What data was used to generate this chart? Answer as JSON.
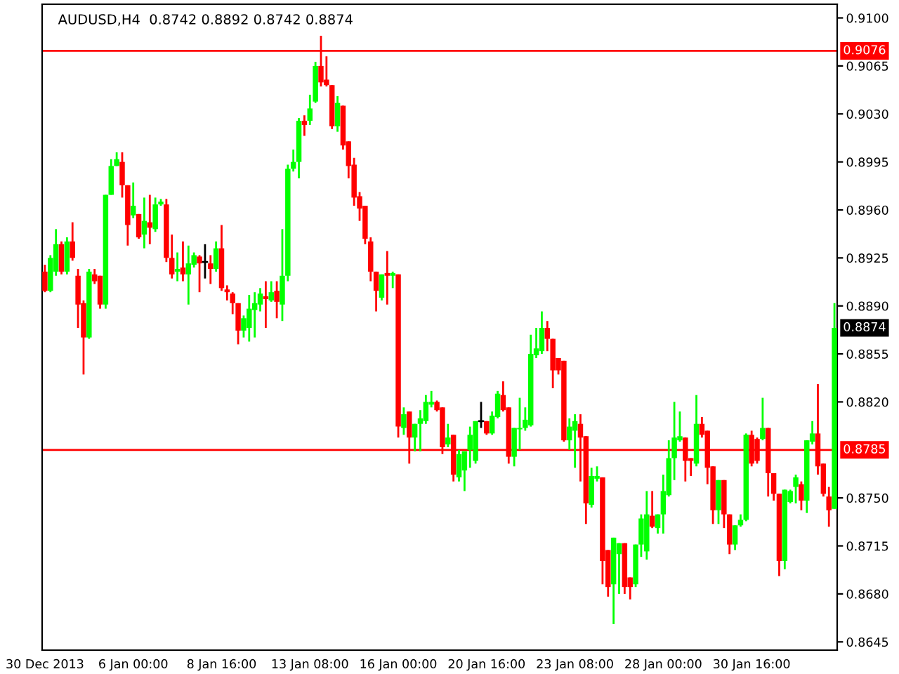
{
  "chart_data": {
    "type": "candlestick",
    "title": "AUDUSD,H4  0.8742 0.8892 0.8742 0.8874",
    "categories": [
      "30 Dec 2013",
      null,
      null,
      null,
      null,
      null,
      null,
      null,
      null,
      null,
      null,
      null,
      null,
      null,
      null,
      null,
      "6 Jan 00:00",
      null,
      null,
      null,
      null,
      null,
      null,
      null,
      null,
      null,
      null,
      null,
      null,
      null,
      null,
      null,
      "8 Jan 16:00",
      null,
      null,
      null,
      null,
      null,
      null,
      null,
      null,
      null,
      null,
      null,
      null,
      null,
      null,
      null,
      "13 Jan 08:00",
      null,
      null,
      null,
      null,
      null,
      null,
      null,
      null,
      null,
      null,
      null,
      null,
      null,
      null,
      null,
      "16 Jan 00:00",
      null,
      null,
      null,
      null,
      null,
      null,
      null,
      null,
      null,
      null,
      null,
      null,
      null,
      null,
      null,
      "20 Jan 16:00",
      null,
      null,
      null,
      null,
      null,
      null,
      null,
      null,
      null,
      null,
      null,
      null,
      null,
      null,
      null,
      "23 Jan 08:00",
      null,
      null,
      null,
      null,
      null,
      null,
      null,
      null,
      null,
      null,
      null,
      null,
      null,
      null,
      null,
      "28 Jan 00:00",
      null,
      null,
      null,
      null,
      null,
      null,
      null,
      null,
      null,
      null,
      null,
      null,
      null,
      null,
      null,
      "30 Jan 16:00",
      null,
      null,
      null,
      null,
      null,
      null,
      null,
      null,
      null,
      null,
      null,
      null,
      null,
      null,
      null
    ],
    "ohlc": [
      [
        0.8915,
        0.892,
        0.89,
        0.8901
      ],
      [
        0.8901,
        0.8927,
        0.89,
        0.8925
      ],
      [
        0.8915,
        0.8946,
        0.8912,
        0.8935
      ],
      [
        0.8935,
        0.8937,
        0.8913,
        0.8915
      ],
      [
        0.8915,
        0.894,
        0.8913,
        0.8937
      ],
      [
        0.8937,
        0.8951,
        0.8923,
        0.8925
      ],
      [
        0.8912,
        0.8917,
        0.8874,
        0.8891
      ],
      [
        0.8892,
        0.8894,
        0.884,
        0.8867
      ],
      [
        0.8867,
        0.8917,
        0.8866,
        0.8915
      ],
      [
        0.8913,
        0.8917,
        0.8906,
        0.8908
      ],
      [
        0.8912,
        0.8912,
        0.8888,
        0.8891
      ],
      [
        0.8891,
        0.8971,
        0.8888,
        0.8971
      ],
      [
        0.8971,
        0.8997,
        0.8971,
        0.8992
      ],
      [
        0.8992,
        0.9002,
        0.8992,
        0.8997
      ],
      [
        0.8995,
        0.9002,
        0.8969,
        0.8978
      ],
      [
        0.8978,
        0.8978,
        0.8934,
        0.8949
      ],
      [
        0.8956,
        0.898,
        0.8954,
        0.8963
      ],
      [
        0.8957,
        0.8957,
        0.8939,
        0.894
      ],
      [
        0.8942,
        0.8969,
        0.8932,
        0.8952
      ],
      [
        0.8951,
        0.8971,
        0.8935,
        0.8947
      ],
      [
        0.8946,
        0.8969,
        0.8944,
        0.8964
      ],
      [
        0.8964,
        0.8968,
        0.8963,
        0.8966
      ],
      [
        0.8964,
        0.8968,
        0.8922,
        0.8925
      ],
      [
        0.8925,
        0.8942,
        0.891,
        0.8913
      ],
      [
        0.8915,
        0.8929,
        0.8908,
        0.8917
      ],
      [
        0.8918,
        0.8937,
        0.8908,
        0.8913
      ],
      [
        0.8913,
        0.8934,
        0.8891,
        0.8921
      ],
      [
        0.892,
        0.8929,
        0.8918,
        0.8927
      ],
      [
        0.8926,
        0.8927,
        0.89,
        0.8921
      ],
      [
        0.8922,
        0.8935,
        0.891,
        0.8922
      ],
      [
        0.8921,
        0.8927,
        0.8906,
        0.8917
      ],
      [
        0.8917,
        0.8937,
        0.8915,
        0.8932
      ],
      [
        0.8932,
        0.8949,
        0.8901,
        0.8903
      ],
      [
        0.8902,
        0.8905,
        0.8894,
        0.89
      ],
      [
        0.8899,
        0.89,
        0.8884,
        0.8892
      ],
      [
        0.8892,
        0.8892,
        0.8862,
        0.8872
      ],
      [
        0.8872,
        0.8883,
        0.8867,
        0.8881
      ],
      [
        0.8874,
        0.8898,
        0.8864,
        0.8888
      ],
      [
        0.8887,
        0.89,
        0.8867,
        0.8892
      ],
      [
        0.8891,
        0.8903,
        0.8886,
        0.8899
      ],
      [
        0.8897,
        0.8908,
        0.8874,
        0.8895
      ],
      [
        0.8894,
        0.8908,
        0.8893,
        0.89
      ],
      [
        0.8901,
        0.8908,
        0.8881,
        0.8893
      ],
      [
        0.8891,
        0.8946,
        0.8879,
        0.8912
      ],
      [
        0.8912,
        0.8993,
        0.8908,
        0.899
      ],
      [
        0.899,
        0.9004,
        0.8988,
        0.8995
      ],
      [
        0.8995,
        0.9027,
        0.8983,
        0.9025
      ],
      [
        0.9025,
        0.9029,
        0.9014,
        0.9022
      ],
      [
        0.9025,
        0.9044,
        0.9022,
        0.9034
      ],
      [
        0.9039,
        0.9068,
        0.9038,
        0.9065
      ],
      [
        0.9065,
        0.9087,
        0.905,
        0.9053
      ],
      [
        0.9055,
        0.9072,
        0.905,
        0.9051
      ],
      [
        0.9051,
        0.9051,
        0.9019,
        0.9021
      ],
      [
        0.9021,
        0.9043,
        0.9017,
        0.9038
      ],
      [
        0.9036,
        0.9036,
        0.9004,
        0.9007
      ],
      [
        0.901,
        0.901,
        0.8983,
        0.8992
      ],
      [
        0.8993,
        0.8998,
        0.8963,
        0.8969
      ],
      [
        0.897,
        0.8973,
        0.8952,
        0.8961
      ],
      [
        0.8963,
        0.8963,
        0.8935,
        0.8939
      ],
      [
        0.8937,
        0.894,
        0.8908,
        0.8915
      ],
      [
        0.8915,
        0.8915,
        0.8886,
        0.8901
      ],
      [
        0.8896,
        0.8913,
        0.8894,
        0.8913
      ],
      [
        0.8914,
        0.893,
        0.8891,
        0.8912
      ],
      [
        0.8912,
        0.8915,
        0.8903,
        0.8914
      ],
      [
        0.8913,
        0.8913,
        0.8794,
        0.8802
      ],
      [
        0.8801,
        0.8816,
        0.8796,
        0.8811
      ],
      [
        0.8813,
        0.8813,
        0.8775,
        0.8794
      ],
      [
        0.8794,
        0.8804,
        0.8784,
        0.8804
      ],
      [
        0.8804,
        0.8814,
        0.8784,
        0.8808
      ],
      [
        0.8806,
        0.8825,
        0.8804,
        0.882
      ],
      [
        0.8818,
        0.8828,
        0.8816,
        0.882
      ],
      [
        0.882,
        0.8821,
        0.8813,
        0.8814
      ],
      [
        0.8816,
        0.8816,
        0.8782,
        0.8787
      ],
      [
        0.8789,
        0.8804,
        0.8787,
        0.8794
      ],
      [
        0.8796,
        0.8796,
        0.8762,
        0.8767
      ],
      [
        0.8765,
        0.8785,
        0.8762,
        0.8782
      ],
      [
        0.877,
        0.8784,
        0.8755,
        0.8784
      ],
      [
        0.8785,
        0.8802,
        0.8772,
        0.8796
      ],
      [
        0.8777,
        0.8806,
        0.8775,
        0.8806
      ],
      [
        0.8806,
        0.882,
        0.8801,
        0.8806
      ],
      [
        0.8806,
        0.8806,
        0.8796,
        0.8797
      ],
      [
        0.8797,
        0.8813,
        0.8796,
        0.881
      ],
      [
        0.8809,
        0.8828,
        0.8808,
        0.8826
      ],
      [
        0.8825,
        0.8835,
        0.8813,
        0.8814
      ],
      [
        0.8816,
        0.8816,
        0.8775,
        0.878
      ],
      [
        0.878,
        0.8801,
        0.8773,
        0.8801
      ],
      [
        0.88,
        0.8823,
        0.8785,
        0.8801
      ],
      [
        0.8801,
        0.8816,
        0.8799,
        0.8807
      ],
      [
        0.8803,
        0.8869,
        0.8802,
        0.8855
      ],
      [
        0.8854,
        0.8874,
        0.8852,
        0.8859
      ],
      [
        0.8857,
        0.8886,
        0.8855,
        0.8874
      ],
      [
        0.8874,
        0.8879,
        0.8857,
        0.8866
      ],
      [
        0.8866,
        0.8866,
        0.883,
        0.8843
      ],
      [
        0.8852,
        0.8852,
        0.884,
        0.8843
      ],
      [
        0.885,
        0.885,
        0.8791,
        0.8792
      ],
      [
        0.8792,
        0.8808,
        0.8785,
        0.8802
      ],
      [
        0.8799,
        0.8811,
        0.8772,
        0.8806
      ],
      [
        0.8804,
        0.8811,
        0.8762,
        0.8794
      ],
      [
        0.8795,
        0.8795,
        0.8731,
        0.8746
      ],
      [
        0.8745,
        0.8772,
        0.8743,
        0.8766
      ],
      [
        0.8764,
        0.8773,
        0.8762,
        0.8766
      ],
      [
        0.8765,
        0.8765,
        0.8687,
        0.8704
      ],
      [
        0.8712,
        0.8712,
        0.8678,
        0.8685
      ],
      [
        0.8687,
        0.8721,
        0.8658,
        0.8721
      ],
      [
        0.8709,
        0.8717,
        0.868,
        0.8717
      ],
      [
        0.8717,
        0.8717,
        0.868,
        0.8685
      ],
      [
        0.8692,
        0.8692,
        0.8676,
        0.8685
      ],
      [
        0.8687,
        0.8716,
        0.8685,
        0.8716
      ],
      [
        0.8716,
        0.8738,
        0.8707,
        0.8735
      ],
      [
        0.8711,
        0.8755,
        0.8705,
        0.8738
      ],
      [
        0.8737,
        0.8755,
        0.8728,
        0.8729
      ],
      [
        0.8728,
        0.8738,
        0.8724,
        0.8738
      ],
      [
        0.8738,
        0.8767,
        0.8724,
        0.8755
      ],
      [
        0.8752,
        0.8792,
        0.8751,
        0.8779
      ],
      [
        0.8779,
        0.882,
        0.8763,
        0.8794
      ],
      [
        0.8792,
        0.8813,
        0.8791,
        0.8795
      ],
      [
        0.8794,
        0.8794,
        0.8762,
        0.8777
      ],
      [
        0.8779,
        0.8779,
        0.8766,
        0.8777
      ],
      [
        0.8775,
        0.8825,
        0.8773,
        0.8804
      ],
      [
        0.8804,
        0.8809,
        0.8794,
        0.8796
      ],
      [
        0.8799,
        0.8799,
        0.876,
        0.8772
      ],
      [
        0.8773,
        0.8773,
        0.8731,
        0.8741
      ],
      [
        0.8741,
        0.8763,
        0.8731,
        0.8763
      ],
      [
        0.8763,
        0.8763,
        0.8728,
        0.8738
      ],
      [
        0.8738,
        0.8738,
        0.8709,
        0.8716
      ],
      [
        0.8716,
        0.873,
        0.8712,
        0.873
      ],
      [
        0.873,
        0.8738,
        0.8729,
        0.8734
      ],
      [
        0.8734,
        0.8797,
        0.8733,
        0.8796
      ],
      [
        0.8796,
        0.8799,
        0.8773,
        0.8775
      ],
      [
        0.8793,
        0.8794,
        0.8775,
        0.8777
      ],
      [
        0.8793,
        0.8823,
        0.8792,
        0.8801
      ],
      [
        0.8801,
        0.8801,
        0.8751,
        0.8768
      ],
      [
        0.8768,
        0.8768,
        0.8748,
        0.8753
      ],
      [
        0.8753,
        0.8753,
        0.8693,
        0.8704
      ],
      [
        0.8704,
        0.8756,
        0.8698,
        0.8756
      ],
      [
        0.8747,
        0.8756,
        0.8746,
        0.8755
      ],
      [
        0.8758,
        0.8767,
        0.8746,
        0.8765
      ],
      [
        0.876,
        0.8762,
        0.8741,
        0.8748
      ],
      [
        0.8748,
        0.8792,
        0.8739,
        0.8792
      ],
      [
        0.8791,
        0.8806,
        0.8789,
        0.8797
      ],
      [
        0.8797,
        0.8833,
        0.8767,
        0.8773
      ],
      [
        0.8775,
        0.8775,
        0.8751,
        0.8753
      ],
      [
        0.8751,
        0.8758,
        0.8729,
        0.8741
      ],
      [
        0.8742,
        0.8892,
        0.8742,
        0.8874
      ]
    ],
    "colors": [
      "#ff0000",
      "#00ff00",
      "#00ff00",
      "#ff0000",
      "#00ff00",
      "#ff0000",
      "#ff0000",
      "#ff0000",
      "#00ff00",
      "#ff0000",
      "#ff0000",
      "#00ff00",
      "#00ff00",
      "#00ff00",
      "#ff0000",
      "#ff0000",
      "#00ff00",
      "#ff0000",
      "#00ff00",
      "#ff0000",
      "#00ff00",
      "#00ff00",
      "#ff0000",
      "#ff0000",
      "#00ff00",
      "#ff0000",
      "#00ff00",
      "#00ff00",
      "#ff0000",
      "#000000",
      "#ff0000",
      "#00ff00",
      "#ff0000",
      "#ff0000",
      "#ff0000",
      "#ff0000",
      "#00ff00",
      "#00ff00",
      "#00ff00",
      "#00ff00",
      "#ff0000",
      "#00ff00",
      "#ff0000",
      "#00ff00",
      "#00ff00",
      "#00ff00",
      "#00ff00",
      "#ff0000",
      "#00ff00",
      "#00ff00",
      "#ff0000",
      "#ff0000",
      "#ff0000",
      "#00ff00",
      "#ff0000",
      "#ff0000",
      "#ff0000",
      "#ff0000",
      "#ff0000",
      "#ff0000",
      "#ff0000",
      "#00ff00",
      "#ff0000",
      "#00ff00",
      "#ff0000",
      "#00ff00",
      "#ff0000",
      "#00ff00",
      "#00ff00",
      "#00ff00",
      "#00ff00",
      "#ff0000",
      "#ff0000",
      "#00ff00",
      "#ff0000",
      "#00ff00",
      "#00ff00",
      "#00ff00",
      "#00ff00",
      "#000000",
      "#ff0000",
      "#00ff00",
      "#00ff00",
      "#ff0000",
      "#ff0000",
      "#00ff00",
      "#00ff00",
      "#00ff00",
      "#00ff00",
      "#00ff00",
      "#00ff00",
      "#ff0000",
      "#ff0000",
      "#ff0000",
      "#ff0000",
      "#00ff00",
      "#00ff00",
      "#ff0000",
      "#ff0000",
      "#00ff00",
      "#00ff00",
      "#ff0000",
      "#ff0000",
      "#00ff00",
      "#00ff00",
      "#ff0000",
      "#ff0000",
      "#00ff00",
      "#00ff00",
      "#00ff00",
      "#ff0000",
      "#00ff00",
      "#00ff00",
      "#00ff00",
      "#00ff00",
      "#00ff00",
      "#ff0000",
      "#ff0000",
      "#00ff00",
      "#ff0000",
      "#ff0000",
      "#ff0000",
      "#00ff00",
      "#ff0000",
      "#ff0000",
      "#00ff00",
      "#00ff00",
      "#00ff00",
      "#ff0000",
      "#ff0000",
      "#00ff00",
      "#ff0000",
      "#ff0000",
      "#ff0000",
      "#00ff00",
      "#00ff00",
      "#00ff00",
      "#ff0000",
      "#00ff00",
      "#00ff00",
      "#ff0000",
      "#ff0000",
      "#ff0000",
      "#00ff00"
    ],
    "ylim": [
      0.8639,
      0.911
    ],
    "yticks": [
      {
        "value": 0.91,
        "label": "0.9100"
      },
      {
        "value": 0.9065,
        "label": "0.9065"
      },
      {
        "value": 0.903,
        "label": "0.9030"
      },
      {
        "value": 0.8995,
        "label": "0.8995"
      },
      {
        "value": 0.896,
        "label": "0.8960"
      },
      {
        "value": 0.8925,
        "label": "0.8925"
      },
      {
        "value": 0.889,
        "label": "0.8890"
      },
      {
        "value": 0.8855,
        "label": "0.8855"
      },
      {
        "value": 0.882,
        "label": "0.8820"
      },
      {
        "value": 0.875,
        "label": "0.8750"
      },
      {
        "value": 0.8715,
        "label": "0.8715"
      },
      {
        "value": 0.868,
        "label": "0.8680"
      },
      {
        "value": 0.8645,
        "label": "0.8645"
      }
    ],
    "ref_lines": [
      {
        "axis": "y",
        "value": 0.9076,
        "label": "0.9076",
        "color": "#ff0000"
      },
      {
        "axis": "y",
        "value": 0.8785,
        "label": "0.8785",
        "color": "#ff0000"
      }
    ],
    "annotations": [
      {
        "text": "0.8874",
        "y": 0.8874
      }
    ],
    "grid": false,
    "legend": false
  }
}
